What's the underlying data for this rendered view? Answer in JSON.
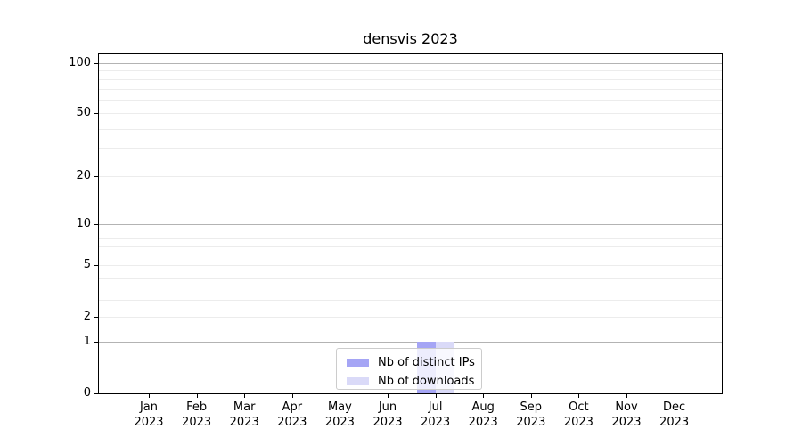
{
  "chart_data": {
    "type": "bar",
    "title": "densvis 2023",
    "xlabel": "",
    "ylabel": "",
    "categories": [
      "Jan",
      "Feb",
      "Mar",
      "Apr",
      "May",
      "Jun",
      "Jul",
      "Aug",
      "Sep",
      "Oct",
      "Nov",
      "Dec"
    ],
    "category_year": "2023",
    "series": [
      {
        "name": "Nb of distinct IPs",
        "color": "#a5a5f5",
        "values": [
          0,
          0,
          0,
          0,
          0,
          0,
          1,
          0,
          0,
          0,
          0,
          0
        ]
      },
      {
        "name": "Nb of downloads",
        "color": "#dadaf8",
        "values": [
          0,
          0,
          0,
          0,
          0,
          0,
          1,
          0,
          0,
          0,
          0,
          0
        ]
      }
    ],
    "y_axis": {
      "scale": "symlog-like",
      "ylim": [
        0,
        100
      ],
      "ticks": [
        {
          "label": "100",
          "value": 100,
          "f": 0.0261
        },
        {
          "label": "50",
          "value": 50,
          "f": 0.1723
        },
        {
          "label": "20",
          "value": 20,
          "f": 0.3603
        },
        {
          "label": "10",
          "value": 10,
          "f": 0.5013
        },
        {
          "label": "5",
          "value": 5,
          "f": 0.6214
        },
        {
          "label": "2",
          "value": 2,
          "f": 0.7755
        },
        {
          "label": "1",
          "value": 1,
          "f": 0.8486
        },
        {
          "label": "0",
          "value": 0,
          "f": 1.0
        }
      ],
      "major_gridlines_f": [
        0.0261,
        0.5013,
        0.8486
      ],
      "minor_gridlines_f": [
        0.0483,
        0.0731,
        0.1018,
        0.1332,
        0.1723,
        0.2193,
        0.2768,
        0.3603,
        0.5196,
        0.5405,
        0.564,
        0.5901,
        0.6214,
        0.658,
        0.7076,
        0.724,
        0.7755
      ]
    },
    "legend": {
      "position": "lower center"
    },
    "grid": true
  },
  "colors": {
    "grid_major": "#b3b3b3",
    "grid_minor": "#ececec",
    "spine": "#000000",
    "text": "#000000",
    "legend_border": "#cccccc"
  }
}
